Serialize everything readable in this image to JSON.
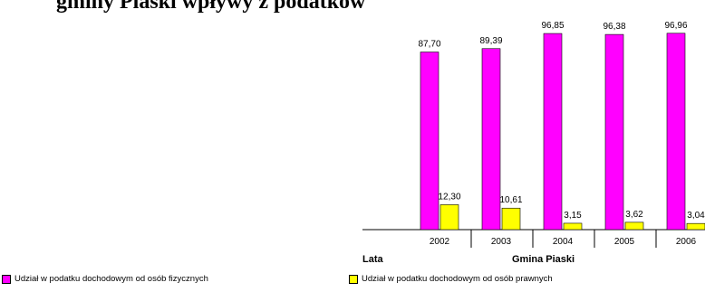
{
  "title_fragment": "gminy Piaski wpływy z podatków",
  "footer": {
    "left_label": "Lata",
    "center_label": "Gmina Piaski"
  },
  "colors": {
    "series1": "#ff00ff",
    "series2": "#ffff00"
  },
  "chart_data": {
    "type": "bar",
    "categories": [
      "2002",
      "2003",
      "2004",
      "2005",
      "2006"
    ],
    "series": [
      {
        "name": "Udział w podatku dochodowym od osób fizycznych",
        "values": [
          87.7,
          89.39,
          96.85,
          96.38,
          96.96
        ],
        "labels": [
          "87,70",
          "89,39",
          "96,85",
          "96,38",
          "96,96"
        ],
        "color": "#ff00ff"
      },
      {
        "name": "Udział w podatku dochodowym od osób prawnych",
        "values": [
          12.3,
          10.61,
          3.15,
          3.62,
          3.04
        ],
        "labels": [
          "12,30",
          "10,61",
          "3,15",
          "3,62",
          "3,04"
        ],
        "color": "#ffff00"
      }
    ],
    "ylim": [
      0,
      100
    ],
    "grid": false,
    "legend_position": "bottom"
  }
}
